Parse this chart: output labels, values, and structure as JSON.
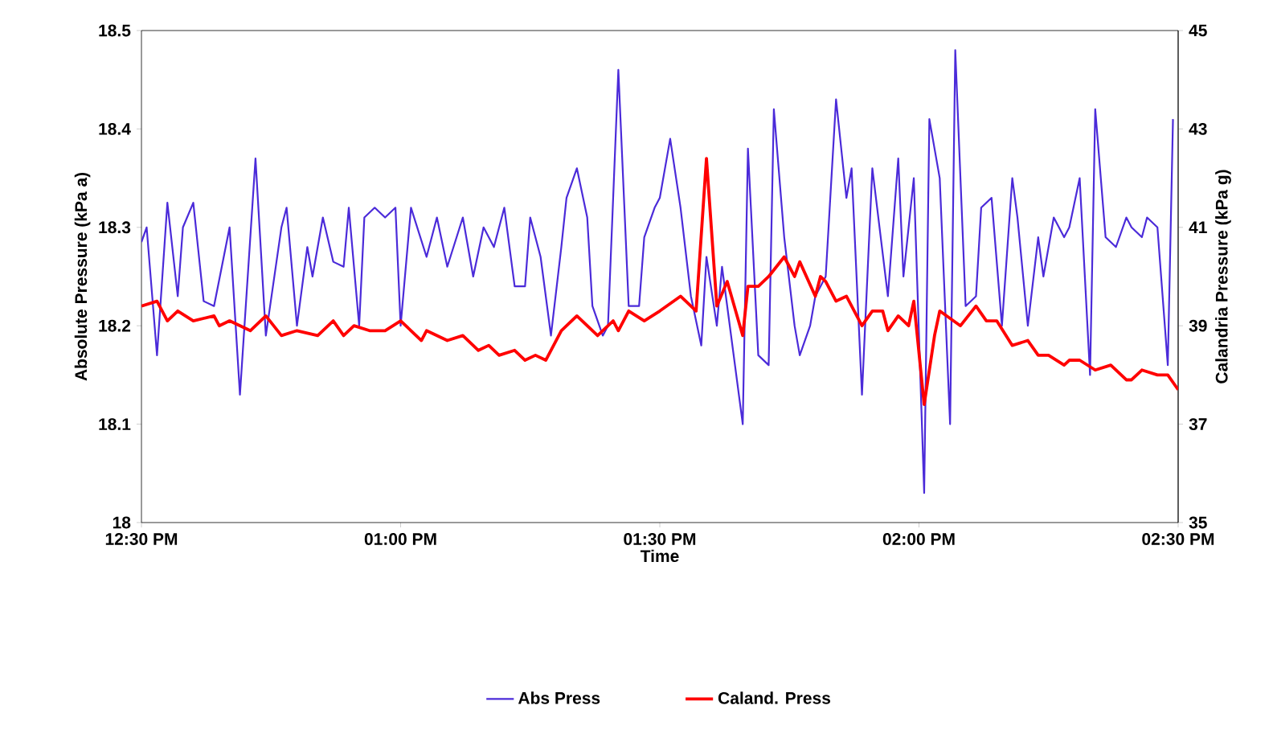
{
  "chart_data": {
    "type": "line",
    "xlabel": "Time",
    "ylabel": "Absolute Pressure (kPa a)",
    "y2label": "Calandria Pressure (kPa g)",
    "xlim": [
      12.5,
      14.5
    ],
    "xticks": [
      {
        "value": 12.5,
        "label": "12:30 PM"
      },
      {
        "value": 13.0,
        "label": "01:00 PM"
      },
      {
        "value": 13.5,
        "label": "01:30 PM"
      },
      {
        "value": 14.0,
        "label": "02:00 PM"
      },
      {
        "value": 14.5,
        "label": "02:30 PM"
      }
    ],
    "ylim": [
      18,
      18.5
    ],
    "yticks": [
      18,
      18.1,
      18.2,
      18.3,
      18.4,
      18.5
    ],
    "y2lim": [
      35,
      45
    ],
    "y2ticks": [
      35,
      37,
      39,
      41,
      43,
      45
    ],
    "legend": "bottom",
    "series": [
      {
        "name": "Abs Press",
        "color": "#4b2bd9",
        "x": [
          12.5,
          12.51,
          12.53,
          12.55,
          12.57,
          12.58,
          12.6,
          12.62,
          12.64,
          12.67,
          12.69,
          12.72,
          12.74,
          12.77,
          12.78,
          12.8,
          12.82,
          12.83,
          12.85,
          12.87,
          12.89,
          12.9,
          12.92,
          12.93,
          12.95,
          12.97,
          12.99,
          13.0,
          13.02,
          13.05,
          13.07,
          13.09,
          13.12,
          13.14,
          13.16,
          13.18,
          13.2,
          13.22,
          13.24,
          13.25,
          13.27,
          13.29,
          13.31,
          13.32,
          13.34,
          13.36,
          13.37,
          13.39,
          13.4,
          13.42,
          13.44,
          13.46,
          13.47,
          13.49,
          13.5,
          13.52,
          13.54,
          13.56,
          13.58,
          13.59,
          13.61,
          13.62,
          13.66,
          13.67,
          13.69,
          13.71,
          13.72,
          13.74,
          13.76,
          13.77,
          13.79,
          13.8,
          13.82,
          13.84,
          13.86,
          13.87,
          13.89,
          13.91,
          13.94,
          13.96,
          13.97,
          13.99,
          14.01,
          14.02,
          14.04,
          14.06,
          14.07,
          14.09,
          14.11,
          14.12,
          14.14,
          14.16,
          14.18,
          14.19,
          14.21,
          14.23,
          14.24,
          14.26,
          14.28,
          14.29,
          14.31,
          14.33,
          14.34,
          14.36,
          14.38,
          14.4,
          14.41,
          14.43,
          14.44,
          14.46,
          14.48,
          14.49
        ],
        "values": [
          18.285,
          18.3,
          18.17,
          18.325,
          18.23,
          18.3,
          18.325,
          18.225,
          18.22,
          18.3,
          18.13,
          18.37,
          18.19,
          18.3,
          18.32,
          18.2,
          18.28,
          18.25,
          18.31,
          18.265,
          18.26,
          18.32,
          18.2,
          18.31,
          18.32,
          18.31,
          18.32,
          18.2,
          18.32,
          18.27,
          18.31,
          18.26,
          18.31,
          18.25,
          18.3,
          18.28,
          18.32,
          18.24,
          18.24,
          18.31,
          18.27,
          18.19,
          18.28,
          18.33,
          18.36,
          18.31,
          18.22,
          18.19,
          18.2,
          18.46,
          18.22,
          18.22,
          18.29,
          18.32,
          18.33,
          18.39,
          18.32,
          18.23,
          18.18,
          18.27,
          18.2,
          18.26,
          18.1,
          18.38,
          18.17,
          18.16,
          18.42,
          18.29,
          18.2,
          18.17,
          18.2,
          18.23,
          18.25,
          18.43,
          18.33,
          18.36,
          18.13,
          18.36,
          18.23,
          18.37,
          18.25,
          18.35,
          18.03,
          18.41,
          18.35,
          18.1,
          18.48,
          18.22,
          18.23,
          18.32,
          18.33,
          18.2,
          18.35,
          18.31,
          18.2,
          18.29,
          18.25,
          18.31,
          18.29,
          18.3,
          18.35,
          18.15,
          18.42,
          18.29,
          18.28,
          18.31,
          18.3,
          18.29,
          18.31,
          18.3,
          18.16,
          18.41
        ]
      },
      {
        "name": "Caland. Press",
        "color": "#ff0000",
        "axis": "y2",
        "x": [
          12.5,
          12.53,
          12.55,
          12.57,
          12.6,
          12.64,
          12.65,
          12.67,
          12.71,
          12.74,
          12.77,
          12.8,
          12.84,
          12.87,
          12.89,
          12.91,
          12.94,
          12.97,
          13.0,
          13.04,
          13.05,
          13.09,
          13.12,
          13.15,
          13.17,
          13.19,
          13.22,
          13.24,
          13.26,
          13.28,
          13.31,
          13.34,
          13.36,
          13.38,
          13.41,
          13.42,
          13.44,
          13.47,
          13.5,
          13.54,
          13.57,
          13.59,
          13.61,
          13.63,
          13.66,
          13.67,
          13.69,
          13.71,
          13.74,
          13.76,
          13.77,
          13.8,
          13.81,
          13.82,
          13.84,
          13.86,
          13.89,
          13.91,
          13.93,
          13.94,
          13.96,
          13.98,
          13.99,
          14.01,
          14.03,
          14.04,
          14.08,
          14.11,
          14.13,
          14.15,
          14.18,
          14.21,
          14.23,
          14.25,
          14.28,
          14.29,
          14.31,
          14.34,
          14.37,
          14.4,
          14.41,
          14.43,
          14.46,
          14.48,
          14.5
        ],
        "values": [
          39.4,
          39.5,
          39.1,
          39.3,
          39.1,
          39.2,
          39.0,
          39.1,
          38.9,
          39.2,
          38.8,
          38.9,
          38.8,
          39.1,
          38.8,
          39.0,
          38.9,
          38.9,
          39.1,
          38.7,
          38.9,
          38.7,
          38.8,
          38.5,
          38.6,
          38.4,
          38.5,
          38.3,
          38.4,
          38.3,
          38.9,
          39.2,
          39.0,
          38.8,
          39.1,
          38.9,
          39.3,
          39.1,
          39.3,
          39.6,
          39.3,
          42.4,
          39.4,
          39.9,
          38.8,
          39.8,
          39.8,
          40.0,
          40.4,
          40.0,
          40.3,
          39.6,
          40.0,
          39.9,
          39.5,
          39.6,
          39.0,
          39.3,
          39.3,
          38.9,
          39.2,
          39.0,
          39.5,
          37.4,
          38.8,
          39.3,
          39.0,
          39.4,
          39.1,
          39.1,
          38.6,
          38.7,
          38.4,
          38.4,
          38.2,
          38.3,
          38.3,
          38.1,
          38.2,
          37.9,
          37.9,
          38.1,
          38.0,
          38.0,
          37.7
        ]
      }
    ]
  }
}
